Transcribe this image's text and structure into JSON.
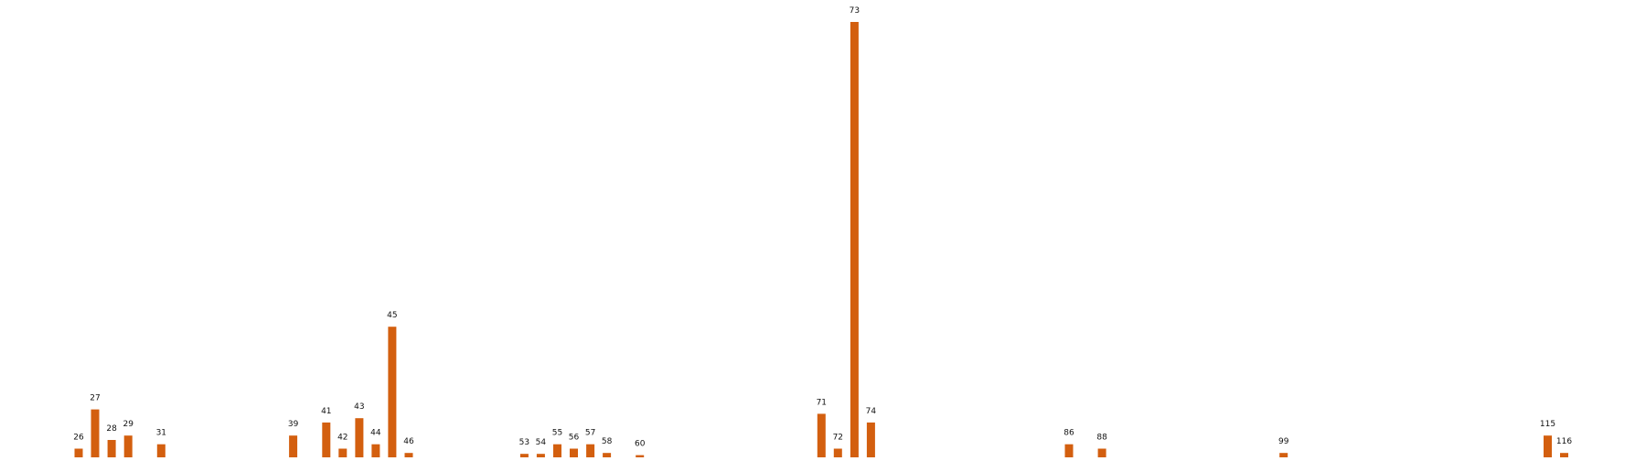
{
  "chart_data": {
    "type": "bar",
    "title": "",
    "xlabel": "",
    "ylabel": "",
    "bar_color": "#d35f0f",
    "categories": [
      "26",
      "27",
      "28",
      "29",
      "31",
      "39",
      "41",
      "42",
      "43",
      "44",
      "45",
      "46",
      "53",
      "54",
      "55",
      "56",
      "57",
      "58",
      "60",
      "71",
      "72",
      "73",
      "74",
      "86",
      "88",
      "99",
      "115",
      "116"
    ],
    "values": [
      2,
      11,
      4,
      5,
      3,
      5,
      8,
      2,
      9,
      3,
      30,
      1,
      0.8,
      0.8,
      3,
      2,
      3,
      1,
      0.5,
      10,
      2,
      100,
      8,
      3,
      2,
      1,
      5,
      1
    ],
    "x_labels_shown": false,
    "y_axis_shown": false,
    "grid": false
  }
}
